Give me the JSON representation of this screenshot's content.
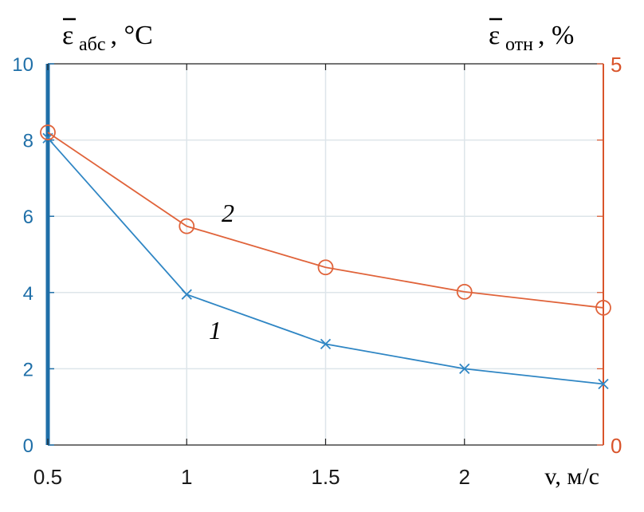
{
  "chart_data": {
    "type": "line",
    "x": [
      0.5,
      1,
      1.5,
      2,
      2.5
    ],
    "xticks": [
      "0.5",
      "1",
      "1.5",
      "2"
    ],
    "xlabel": "v, м/с",
    "xlim": [
      0.5,
      2.5
    ],
    "y_left": {
      "symbol": "ε",
      "subscript": "абс",
      "unit": ", °C",
      "ticks": [
        "0",
        "2",
        "4",
        "6",
        "8",
        "10"
      ],
      "lim": [
        0,
        10
      ],
      "color": "#1f6fa8"
    },
    "y_right": {
      "symbol": "ε",
      "subscript": "отн",
      "unit": ", %",
      "ticks": [
        "0",
        "5"
      ],
      "lim": [
        0,
        5
      ],
      "color": "#d9542b"
    },
    "grid": true,
    "series": [
      {
        "label": "1",
        "axis": "left",
        "marker": "x",
        "color": "#2f86c4",
        "values": [
          8.05,
          3.95,
          2.65,
          2.0,
          1.6
        ]
      },
      {
        "label": "2",
        "axis": "right",
        "marker": "o",
        "color": "#e0633a",
        "values": [
          4.1,
          2.87,
          2.33,
          2.01,
          1.8
        ]
      }
    ]
  }
}
